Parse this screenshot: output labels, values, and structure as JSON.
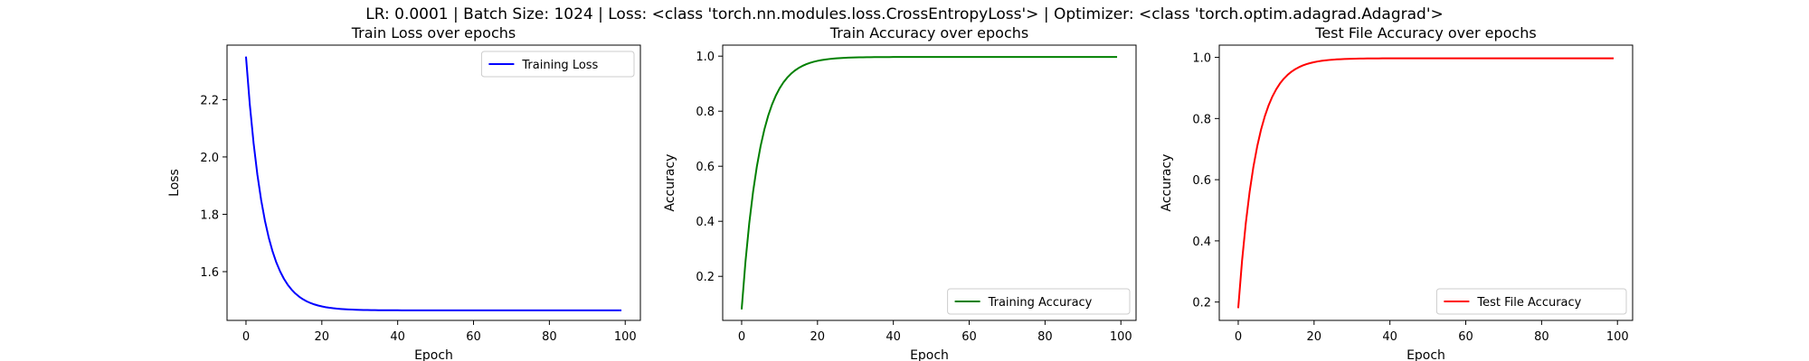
{
  "suptitle": "LR: 0.0001 | Batch Size: 1024 | Loss: <class 'torch.nn.modules.loss.CrossEntropyLoss'> | Optimizer: <class 'torch.optim.adagrad.Adagrad'>",
  "chart_data": [
    {
      "type": "line",
      "title": "Train Loss over epochs",
      "xlabel": "Epoch",
      "ylabel": "Loss",
      "xlim": [
        -5,
        104
      ],
      "ylim": [
        1.43,
        2.39
      ],
      "xticks": [
        0,
        20,
        40,
        60,
        80,
        100
      ],
      "yticks": [
        1.6,
        1.8,
        2.0,
        2.2
      ],
      "grid": false,
      "legend_position": "upper right",
      "series": [
        {
          "name": "Training Loss",
          "color": "#0000ff",
          "curve": {
            "start": 2.35,
            "end": 1.465,
            "decay_epochs": 4.8,
            "epochs": 100
          }
        }
      ]
    },
    {
      "type": "line",
      "title": "Train Accuracy over epochs",
      "xlabel": "Epoch",
      "ylabel": "Accuracy",
      "xlim": [
        -5,
        104
      ],
      "ylim": [
        0.04,
        1.04
      ],
      "xticks": [
        0,
        20,
        40,
        60,
        80,
        100
      ],
      "yticks": [
        0.2,
        0.4,
        0.6,
        0.8,
        1.0
      ],
      "grid": false,
      "legend_position": "lower right",
      "series": [
        {
          "name": "Training Accuracy",
          "color": "#008000",
          "curve": {
            "start": 0.08,
            "end": 0.997,
            "decay_epochs": 4.8,
            "epochs": 100
          }
        }
      ]
    },
    {
      "type": "line",
      "title": "Test File Accuracy over epochs",
      "xlabel": "Epoch",
      "ylabel": "Accuracy",
      "xlim": [
        -5,
        104
      ],
      "ylim": [
        0.14,
        1.04
      ],
      "xticks": [
        0,
        20,
        40,
        60,
        80,
        100
      ],
      "yticks": [
        0.2,
        0.4,
        0.6,
        0.8,
        1.0
      ],
      "grid": false,
      "legend_position": "lower right",
      "series": [
        {
          "name": "Test File Accuracy",
          "color": "#ff0000",
          "curve": {
            "start": 0.18,
            "end": 0.997,
            "decay_epochs": 4.8,
            "epochs": 100
          }
        }
      ]
    }
  ]
}
